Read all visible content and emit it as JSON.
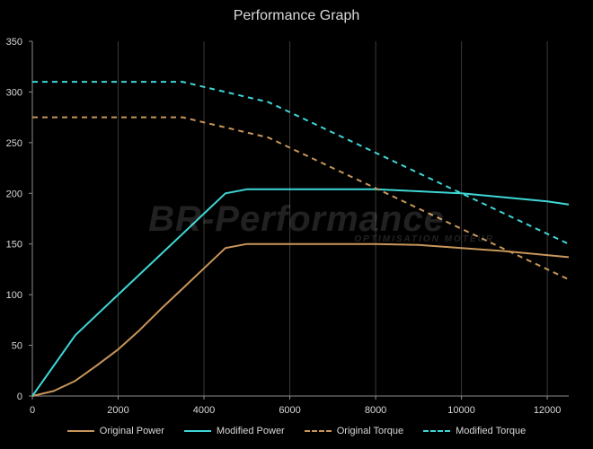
{
  "chart_data": {
    "type": "line",
    "title": "Performance Graph",
    "xlim": [
      0,
      12500
    ],
    "ylim": [
      0,
      350
    ],
    "x_ticks": [
      0,
      2000,
      4000,
      6000,
      8000,
      10000,
      12000
    ],
    "y_ticks": [
      0,
      50,
      100,
      150,
      200,
      250,
      300,
      350
    ],
    "grid": "vertical",
    "legend": "bottom",
    "series": [
      {
        "name": "Original Power",
        "color": "#c8965a",
        "style": "solid",
        "points": [
          [
            0,
            0
          ],
          [
            500,
            5
          ],
          [
            1000,
            15
          ],
          [
            1500,
            30
          ],
          [
            2000,
            46
          ],
          [
            2500,
            65
          ],
          [
            3000,
            86
          ],
          [
            3500,
            106
          ],
          [
            4000,
            126
          ],
          [
            4500,
            146
          ],
          [
            5000,
            150
          ],
          [
            6000,
            150
          ],
          [
            7000,
            150
          ],
          [
            8000,
            150
          ],
          [
            9000,
            149
          ],
          [
            10000,
            146
          ],
          [
            11000,
            143
          ],
          [
            12000,
            139
          ],
          [
            12500,
            137
          ]
        ]
      },
      {
        "name": "Modified Power",
        "color": "#3fd6d6",
        "style": "solid",
        "points": [
          [
            0,
            0
          ],
          [
            1000,
            60
          ],
          [
            2000,
            100
          ],
          [
            3000,
            140
          ],
          [
            4000,
            180
          ],
          [
            4500,
            200
          ],
          [
            5000,
            204
          ],
          [
            6000,
            204
          ],
          [
            7000,
            204
          ],
          [
            8000,
            204
          ],
          [
            9000,
            202
          ],
          [
            10000,
            200
          ],
          [
            11000,
            196
          ],
          [
            12000,
            192
          ],
          [
            12500,
            189
          ]
        ]
      },
      {
        "name": "Original Torque",
        "color": "#c8965a",
        "style": "dashed",
        "points": [
          [
            0,
            275
          ],
          [
            1000,
            275
          ],
          [
            2000,
            275
          ],
          [
            3000,
            275
          ],
          [
            3500,
            275
          ],
          [
            4000,
            270
          ],
          [
            4500,
            265
          ],
          [
            5000,
            260
          ],
          [
            5500,
            255
          ],
          [
            6000,
            245
          ],
          [
            7000,
            225
          ],
          [
            8000,
            205
          ],
          [
            9000,
            185
          ],
          [
            10000,
            165
          ],
          [
            11000,
            145
          ],
          [
            12000,
            125
          ],
          [
            12500,
            115
          ]
        ]
      },
      {
        "name": "Modified Torque",
        "color": "#3fd6d6",
        "style": "dashed",
        "points": [
          [
            0,
            310
          ],
          [
            1000,
            310
          ],
          [
            2000,
            310
          ],
          [
            3000,
            310
          ],
          [
            3500,
            310
          ],
          [
            4000,
            305
          ],
          [
            4500,
            300
          ],
          [
            5000,
            295
          ],
          [
            5500,
            290
          ],
          [
            6000,
            280
          ],
          [
            7000,
            260
          ],
          [
            8000,
            240
          ],
          [
            9000,
            220
          ],
          [
            10000,
            200
          ],
          [
            11000,
            180
          ],
          [
            12000,
            160
          ],
          [
            12500,
            150
          ]
        ]
      }
    ]
  },
  "watermark": {
    "main": "BR-Performance",
    "sub": "OPTIMISATION MOTEUR"
  }
}
